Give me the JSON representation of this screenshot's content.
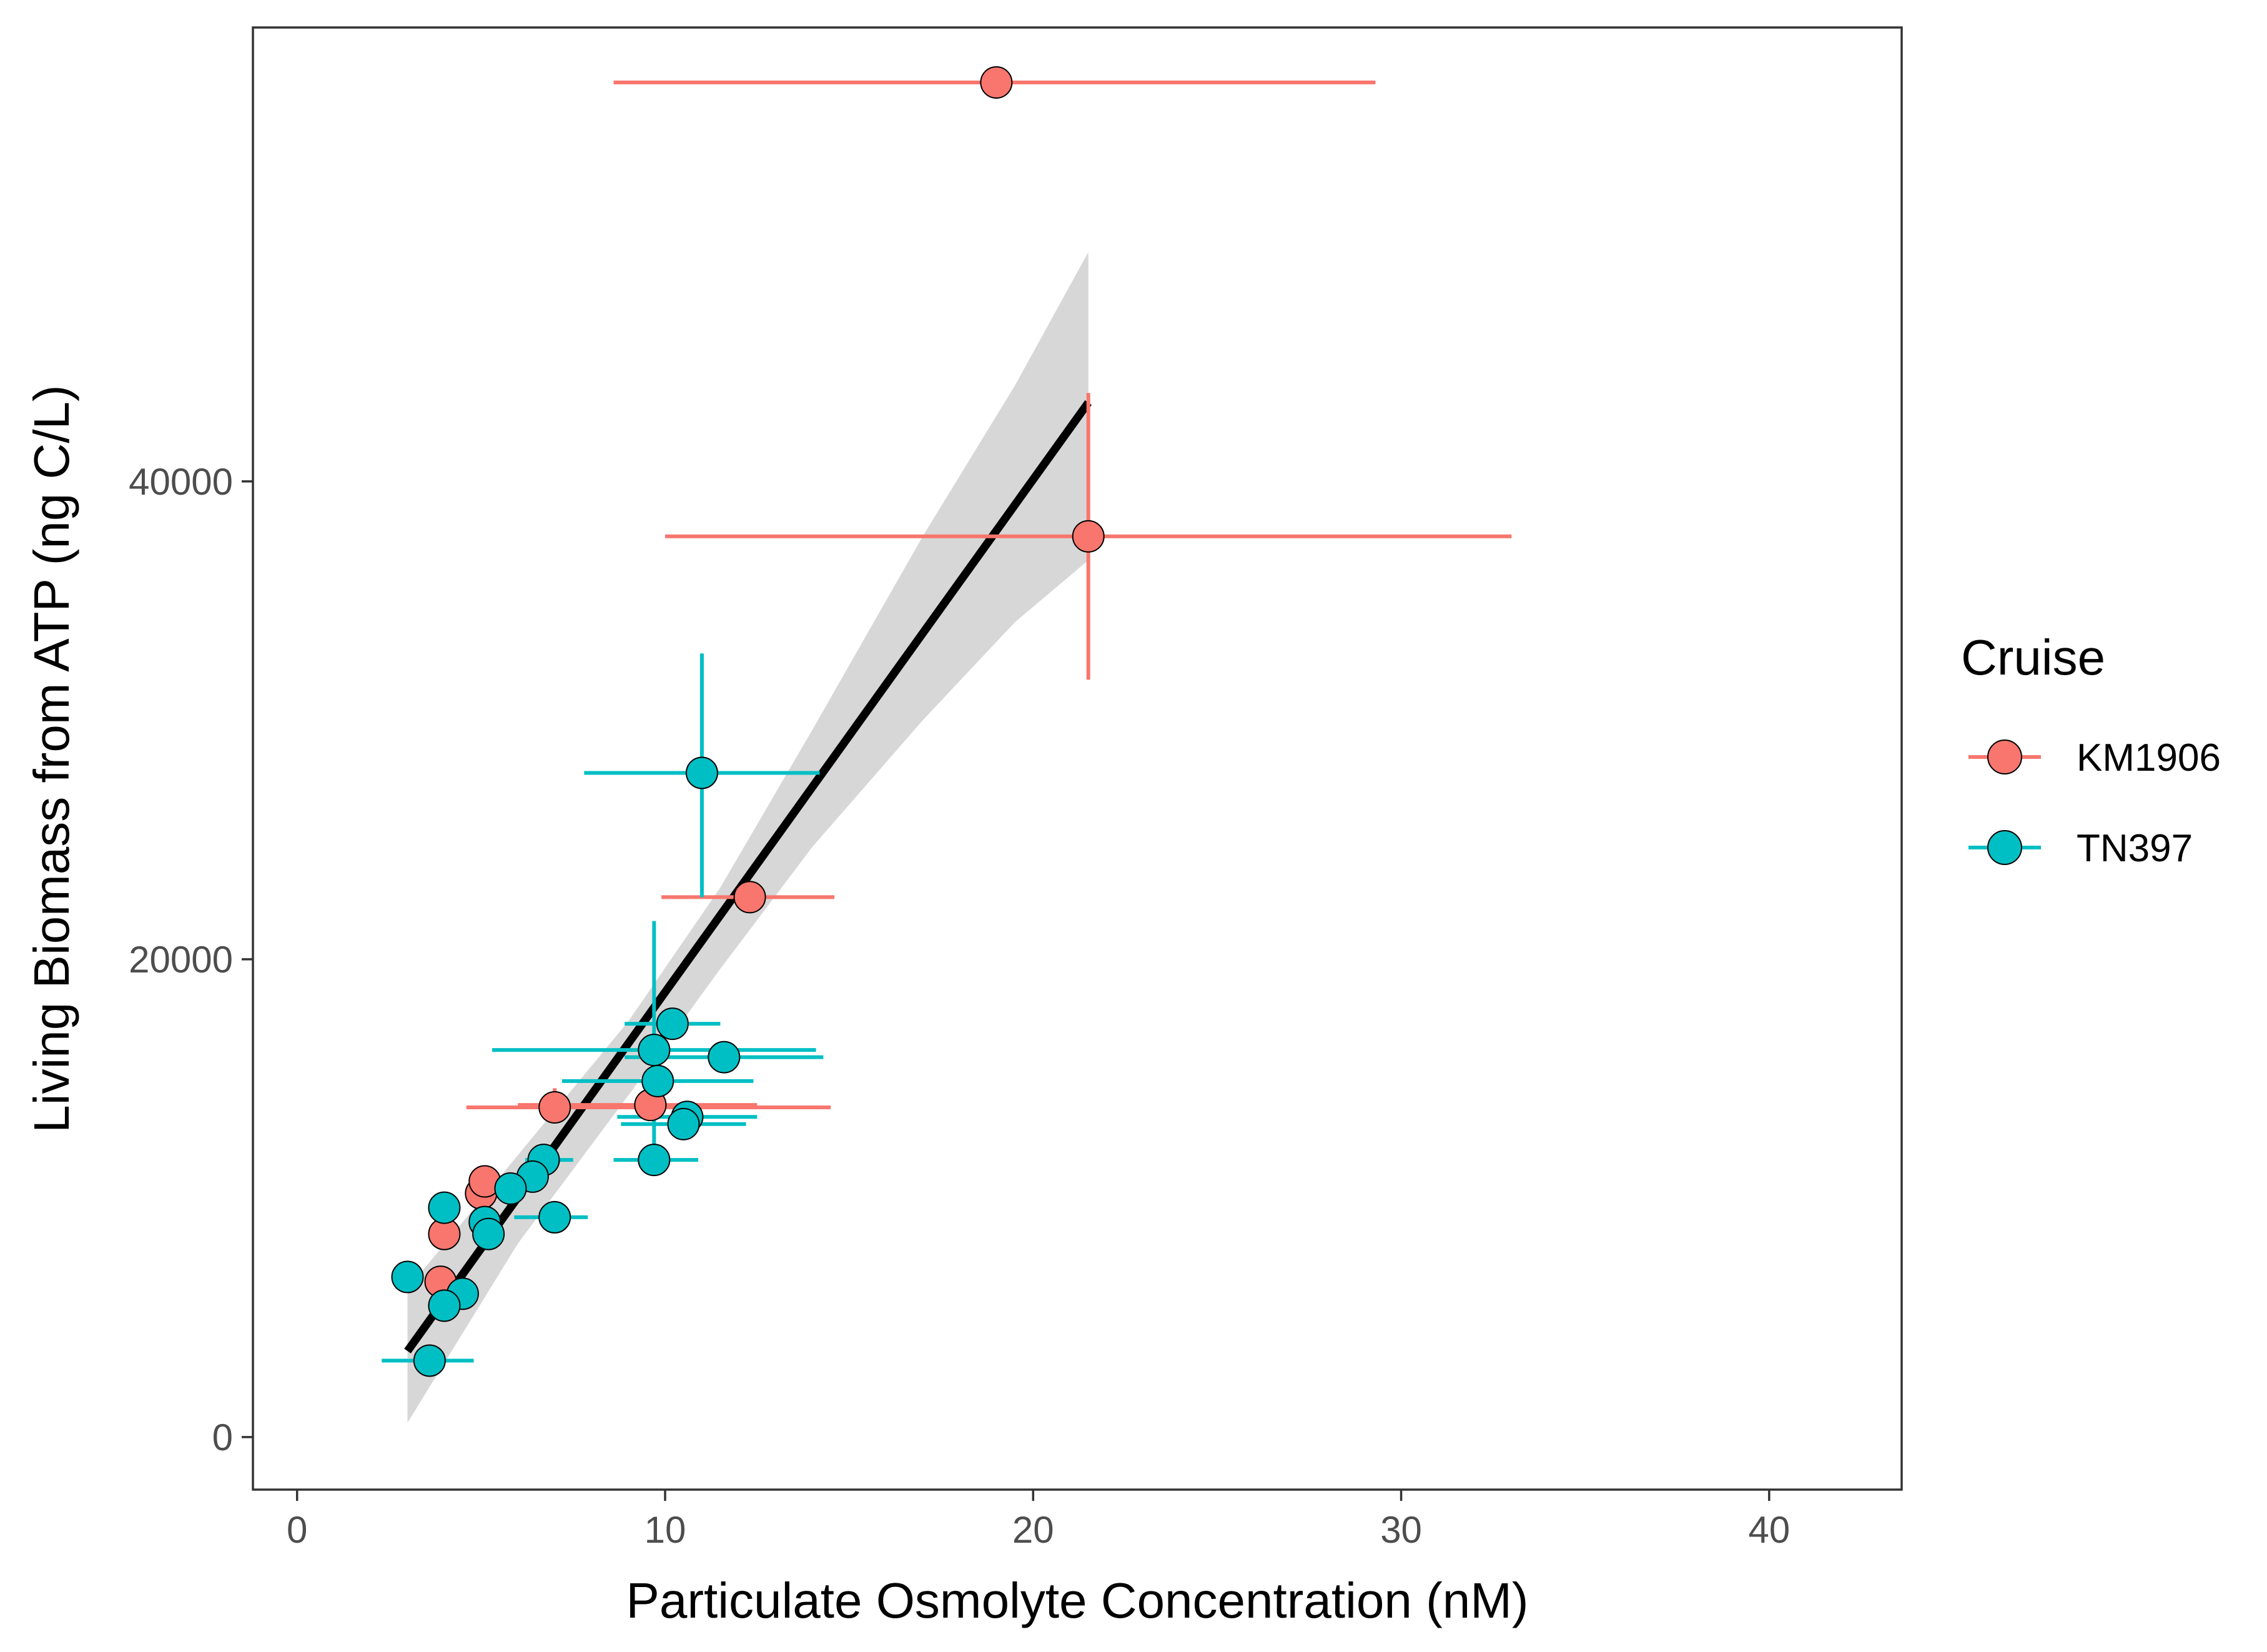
{
  "chart_data": {
    "type": "scatter",
    "xlabel": "Particulate Osmolyte Concentration (nM)",
    "ylabel": "Living Biomass from ATP (ng C/L)",
    "xlim": [
      -1.2,
      43.6
    ],
    "ylim": [
      -2200,
      59000
    ],
    "x_ticks": [
      0,
      10,
      20,
      30,
      40
    ],
    "y_ticks": [
      0,
      20000,
      40000
    ],
    "x_tick_labels": [
      "0",
      "10",
      "20",
      "30",
      "40"
    ],
    "y_tick_labels": [
      "0",
      "20000",
      "40000"
    ],
    "grid": false,
    "legend": {
      "title": "Cruise",
      "position": "right",
      "entries": [
        "KM1906",
        "TN397"
      ]
    },
    "series": [
      {
        "name": "KM1906",
        "color": "#F8766D",
        "points": [
          {
            "x": 19.0,
            "y": 56700,
            "xerr": [
              8.6,
              29.3
            ],
            "yerr": null
          },
          {
            "x": 21.5,
            "y": 37700,
            "xerr": [
              10.0,
              33.0
            ],
            "yerr": [
              31700,
              43700
            ]
          },
          {
            "x": 12.3,
            "y": 22600,
            "xerr": [
              9.9,
              14.6
            ],
            "yerr": null
          },
          {
            "x": 7.0,
            "y": 13800,
            "xerr": [
              4.6,
              14.5
            ],
            "yerr": [
              13200,
              14600
            ]
          },
          {
            "x": 9.6,
            "y": 13900,
            "xerr": [
              6.0,
              12.5
            ],
            "yerr": null
          },
          {
            "x": 5.0,
            "y": 10200,
            "xerr": null,
            "yerr": null
          },
          {
            "x": 5.1,
            "y": 10700,
            "xerr": null,
            "yerr": null
          },
          {
            "x": 4.0,
            "y": 8500,
            "xerr": null,
            "yerr": null
          },
          {
            "x": 3.9,
            "y": 6500,
            "xerr": null,
            "yerr": null
          }
        ]
      },
      {
        "name": "TN397",
        "color": "#00BFC4",
        "points": [
          {
            "x": 11.0,
            "y": 27800,
            "xerr": [
              7.8,
              14.2
            ],
            "yerr": [
              22600,
              32800
            ]
          },
          {
            "x": 10.2,
            "y": 17300,
            "xerr": [
              8.9,
              11.5
            ],
            "yerr": null
          },
          {
            "x": 9.7,
            "y": 16200,
            "xerr": [
              5.3,
              14.1
            ],
            "yerr": [
              11000,
              21600
            ]
          },
          {
            "x": 11.6,
            "y": 15900,
            "xerr": [
              8.9,
              14.3
            ],
            "yerr": null
          },
          {
            "x": 9.8,
            "y": 14900,
            "xerr": [
              7.2,
              12.4
            ],
            "yerr": null
          },
          {
            "x": 10.6,
            "y": 13400,
            "xerr": [
              8.7,
              12.5
            ],
            "yerr": null
          },
          {
            "x": 10.5,
            "y": 13100,
            "xerr": [
              8.8,
              12.2
            ],
            "yerr": null
          },
          {
            "x": 9.7,
            "y": 11600,
            "xerr": [
              8.6,
              10.9
            ],
            "yerr": null
          },
          {
            "x": 6.7,
            "y": 11600,
            "xerr": [
              6.2,
              7.5
            ],
            "yerr": null
          },
          {
            "x": 6.4,
            "y": 10900,
            "xerr": null,
            "yerr": null
          },
          {
            "x": 5.8,
            "y": 10400,
            "xerr": null,
            "yerr": null
          },
          {
            "x": 7.0,
            "y": 9200,
            "xerr": [
              5.9,
              7.9
            ],
            "yerr": null
          },
          {
            "x": 5.1,
            "y": 9000,
            "xerr": null,
            "yerr": null
          },
          {
            "x": 5.2,
            "y": 8500,
            "xerr": null,
            "yerr": null
          },
          {
            "x": 4.0,
            "y": 9600,
            "xerr": null,
            "yerr": null
          },
          {
            "x": 3.0,
            "y": 6700,
            "xerr": null,
            "yerr": null
          },
          {
            "x": 4.5,
            "y": 6000,
            "xerr": null,
            "yerr": null
          },
          {
            "x": 4.0,
            "y": 5500,
            "xerr": null,
            "yerr": null
          },
          {
            "x": 3.6,
            "y": 3200,
            "xerr": [
              2.3,
              4.8
            ],
            "yerr": null
          }
        ]
      }
    ],
    "fit_line": {
      "color": "#000000",
      "x": [
        3.0,
        21.5
      ],
      "y": [
        3600,
        43300
      ],
      "confidence_band": {
        "color": "#D3D3D3",
        "x": [
          3.0,
          6.0,
          9.0,
          11.5,
          14.0,
          17.0,
          19.5,
          21.5
        ],
        "lower": [
          600,
          8100,
          14300,
          19600,
          24700,
          30000,
          34100,
          36700
        ],
        "upper": [
          6200,
          11800,
          17400,
          23000,
          29600,
          37700,
          44000,
          49600
        ]
      }
    }
  }
}
